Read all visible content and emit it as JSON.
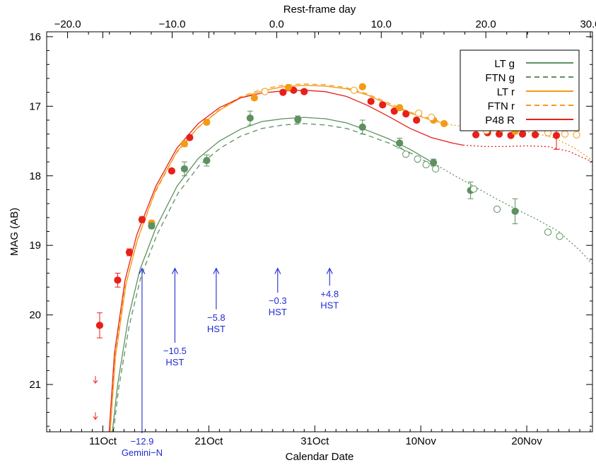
{
  "chart_data": {
    "type": "scatter",
    "xlabel": "Calendar Date",
    "x2label": "Rest-frame day",
    "ylabel": "MAG (AB)",
    "x_units": "days since 2011 Oct 1 (calendar axis shows dates)",
    "xlim": [
      4.7,
      56.2
    ],
    "x2lim": [
      -22.0,
      30.2
    ],
    "ylim": [
      21.68,
      15.93
    ],
    "y_inverted": true,
    "bottom_ticks": [
      {
        "x": 10,
        "label": "11Oct"
      },
      {
        "x": 20,
        "label": "21Oct"
      },
      {
        "x": 30,
        "label": "31Oct"
      },
      {
        "x": 40,
        "label": "10Nov"
      },
      {
        "x": 50,
        "label": "20Nov"
      }
    ],
    "top_ticks": [
      {
        "x": -20.0,
        "label": "−20.0"
      },
      {
        "x": -10.0,
        "label": "−10.0"
      },
      {
        "x": 0.0,
        "label": "0.0"
      },
      {
        "x": 10.0,
        "label": "10.0"
      },
      {
        "x": 20.0,
        "label": "20.0"
      },
      {
        "x": 30.0,
        "label": "30.0"
      }
    ],
    "y_ticks": [
      16,
      17,
      18,
      19,
      20,
      21
    ],
    "colors": {
      "g": "#5d9160",
      "r": "#f39b16",
      "R": "#e8201a",
      "hst": "#1f2bd0"
    },
    "legend": [
      {
        "label": "LT g",
        "color": "#5d9160",
        "dash": "solid"
      },
      {
        "label": "FTN g",
        "color": "#5d9160",
        "dash": "dashed"
      },
      {
        "label": "LT r",
        "color": "#f39b16",
        "dash": "solid"
      },
      {
        "label": "FTN r",
        "color": "#f39b16",
        "dash": "dashed"
      },
      {
        "label": "P48 R",
        "color": "#e8201a",
        "dash": "solid"
      }
    ],
    "legend_position": "top-right",
    "series": [
      {
        "name": "P48 R",
        "color": "#e8201a",
        "filled": true,
        "points": [
          [
            9.7,
            20.15,
            0.18
          ],
          [
            11.4,
            19.5,
            0.1
          ],
          [
            12.5,
            19.1,
            0.05
          ],
          [
            13.7,
            18.63,
            0.04
          ],
          [
            16.5,
            17.93,
            0.03
          ],
          [
            18.2,
            17.45,
            0.03
          ],
          [
            27.0,
            16.8,
            0.03
          ],
          [
            28.0,
            16.77,
            0.03
          ],
          [
            29.0,
            16.79,
            0.03
          ],
          [
            35.3,
            16.93,
            0.03
          ],
          [
            36.4,
            16.98,
            0.03
          ],
          [
            37.5,
            17.07,
            0.03
          ],
          [
            38.6,
            17.11,
            0.03
          ],
          [
            39.6,
            17.2,
            0.03
          ],
          [
            45.2,
            17.41,
            0.03
          ],
          [
            46.3,
            17.38,
            0.03
          ],
          [
            47.4,
            17.4,
            0.03
          ],
          [
            48.5,
            17.42,
            0.03
          ],
          [
            49.6,
            17.4,
            0.03
          ],
          [
            50.8,
            17.41,
            0.03
          ],
          [
            52.8,
            17.42,
            0.2
          ]
        ]
      },
      {
        "name": "LT r",
        "color": "#f39b16",
        "filled": true,
        "points": [
          [
            14.6,
            18.68,
            0.04
          ],
          [
            17.7,
            17.54,
            0.04
          ],
          [
            19.8,
            17.23,
            0.03
          ],
          [
            24.3,
            16.88,
            0.03
          ],
          [
            27.5,
            16.73,
            0.02
          ],
          [
            34.5,
            16.72,
            0.03
          ],
          [
            38.0,
            17.02,
            0.03
          ],
          [
            41.2,
            17.2,
            0.03
          ],
          [
            42.2,
            17.25,
            0.03
          ],
          [
            44.7,
            17.27,
            0.04
          ],
          [
            45.7,
            17.3,
            0.04
          ],
          [
            48.9,
            17.36,
            0.04
          ]
        ]
      },
      {
        "name": "FTN r",
        "color": "#f39b16",
        "filled": false,
        "points": [
          [
            25.3,
            16.79,
            0.0
          ],
          [
            33.7,
            16.77,
            0.0
          ],
          [
            39.8,
            17.1,
            0.0
          ],
          [
            41.0,
            17.16,
            0.0
          ],
          [
            46.2,
            17.35,
            0.0
          ],
          [
            47.6,
            17.32,
            0.0
          ],
          [
            52.0,
            17.38,
            0.0
          ],
          [
            53.6,
            17.4,
            0.0
          ],
          [
            54.7,
            17.41,
            0.0
          ]
        ]
      },
      {
        "name": "LT g",
        "color": "#5d9160",
        "filled": true,
        "points": [
          [
            14.6,
            18.72,
            0.04
          ],
          [
            17.7,
            17.9,
            0.1
          ],
          [
            19.8,
            17.78,
            0.08
          ],
          [
            23.9,
            17.17,
            0.1
          ],
          [
            28.4,
            17.19,
            0.05
          ],
          [
            34.5,
            17.3,
            0.1
          ],
          [
            38.0,
            17.53,
            0.07
          ],
          [
            41.2,
            17.81,
            0.05
          ],
          [
            44.7,
            18.21,
            0.12
          ],
          [
            48.9,
            18.51,
            0.18
          ]
        ]
      },
      {
        "name": "FTN g",
        "color": "#5d9160",
        "filled": false,
        "points": [
          [
            38.6,
            17.69,
            0.0
          ],
          [
            39.7,
            17.76,
            0.0
          ],
          [
            40.5,
            17.84,
            0.0
          ],
          [
            41.4,
            17.9,
            0.0
          ],
          [
            45.0,
            18.19,
            0.0
          ],
          [
            47.2,
            18.48,
            0.0
          ],
          [
            52.0,
            18.81,
            0.0
          ],
          [
            53.1,
            18.87,
            0.0
          ]
        ]
      }
    ],
    "upper_limits": [
      {
        "x": 9.3,
        "y": 20.93,
        "color": "#e8201a"
      },
      {
        "x": 9.3,
        "y": 21.45,
        "color": "#e8201a"
      }
    ],
    "model_curves": [
      {
        "name": "LT g",
        "color": "#5d9160",
        "dash": "solid",
        "points": [
          [
            10.9,
            21.68
          ],
          [
            11.4,
            21.0
          ],
          [
            12.4,
            20.05
          ],
          [
            13.5,
            19.35
          ],
          [
            15.0,
            18.75
          ],
          [
            17.0,
            18.15
          ],
          [
            19.0,
            17.75
          ],
          [
            21.0,
            17.5
          ],
          [
            23.0,
            17.33
          ],
          [
            25.0,
            17.22
          ],
          [
            27.0,
            17.18
          ],
          [
            29.0,
            17.16
          ],
          [
            31.0,
            17.18
          ],
          [
            33.0,
            17.24
          ],
          [
            35.0,
            17.35
          ],
          [
            37.0,
            17.47
          ],
          [
            39.0,
            17.62
          ],
          [
            41.0,
            17.8
          ]
        ]
      },
      {
        "name": "LT g (extrapolated)",
        "color": "#5d9160",
        "dash": "dotted",
        "points": [
          [
            41.0,
            17.8
          ],
          [
            43.0,
            17.98
          ],
          [
            45.0,
            18.15
          ],
          [
            47.0,
            18.32
          ],
          [
            49.0,
            18.48
          ],
          [
            51.0,
            18.63
          ],
          [
            53.0,
            18.8
          ],
          [
            55.0,
            19.07
          ],
          [
            56.2,
            19.27
          ]
        ]
      },
      {
        "name": "FTN g",
        "color": "#5d9160",
        "dash": "dashed",
        "points": [
          [
            11.0,
            21.68
          ],
          [
            11.5,
            21.05
          ],
          [
            12.5,
            20.15
          ],
          [
            13.6,
            19.45
          ],
          [
            15.1,
            18.85
          ],
          [
            17.1,
            18.25
          ],
          [
            19.1,
            17.85
          ],
          [
            21.1,
            17.6
          ],
          [
            23.0,
            17.43
          ],
          [
            25.0,
            17.32
          ],
          [
            27.0,
            17.27
          ],
          [
            29.0,
            17.25
          ],
          [
            31.0,
            17.27
          ],
          [
            33.0,
            17.32
          ],
          [
            35.0,
            17.42
          ],
          [
            37.0,
            17.53
          ],
          [
            39.0,
            17.67
          ],
          [
            41.0,
            17.84
          ]
        ]
      },
      {
        "name": "LT r",
        "color": "#f39b16",
        "dash": "solid",
        "points": [
          [
            10.7,
            21.68
          ],
          [
            11.2,
            20.6
          ],
          [
            12.2,
            19.55
          ],
          [
            13.3,
            18.9
          ],
          [
            15.0,
            18.2
          ],
          [
            17.0,
            17.65
          ],
          [
            19.0,
            17.3
          ],
          [
            21.0,
            17.06
          ],
          [
            23.0,
            16.88
          ],
          [
            25.0,
            16.78
          ],
          [
            27.0,
            16.72
          ],
          [
            29.0,
            16.7
          ],
          [
            31.0,
            16.71
          ],
          [
            33.0,
            16.75
          ],
          [
            35.0,
            16.84
          ],
          [
            37.0,
            16.98
          ],
          [
            39.0,
            17.1
          ],
          [
            41.0,
            17.2
          ],
          [
            42.5,
            17.26
          ]
        ]
      },
      {
        "name": "FTN r",
        "color": "#f39b16",
        "dash": "dashed",
        "points": [
          [
            10.6,
            21.68
          ],
          [
            11.1,
            20.65
          ],
          [
            12.1,
            19.6
          ],
          [
            13.2,
            18.95
          ],
          [
            14.9,
            18.25
          ],
          [
            16.9,
            17.68
          ],
          [
            18.9,
            17.32
          ],
          [
            20.9,
            17.06
          ],
          [
            22.9,
            16.87
          ],
          [
            24.9,
            16.76
          ],
          [
            26.9,
            16.7
          ],
          [
            28.9,
            16.68
          ],
          [
            30.9,
            16.69
          ],
          [
            32.9,
            16.73
          ],
          [
            34.9,
            16.82
          ],
          [
            36.9,
            16.95
          ],
          [
            38.9,
            17.08
          ],
          [
            40.9,
            17.18
          ],
          [
            42.4,
            17.24
          ]
        ]
      },
      {
        "name": "r (extrapolated)",
        "color": "#f39b16",
        "dash": "dotted",
        "points": [
          [
            42.5,
            17.26
          ],
          [
            44.5,
            17.3
          ],
          [
            46.5,
            17.33
          ],
          [
            48.5,
            17.35
          ],
          [
            50.5,
            17.38
          ],
          [
            52.5,
            17.45
          ],
          [
            54.5,
            17.6
          ],
          [
            56.2,
            17.78
          ]
        ]
      },
      {
        "name": "P48 R",
        "color": "#e8201a",
        "dash": "solid",
        "points": [
          [
            10.6,
            21.68
          ],
          [
            11.1,
            20.55
          ],
          [
            12.1,
            19.5
          ],
          [
            13.2,
            18.85
          ],
          [
            15.0,
            18.15
          ],
          [
            17.0,
            17.6
          ],
          [
            19.0,
            17.25
          ],
          [
            21.0,
            17.02
          ],
          [
            23.0,
            16.88
          ],
          [
            25.0,
            16.81
          ],
          [
            27.0,
            16.78
          ],
          [
            29.0,
            16.77
          ],
          [
            31.0,
            16.79
          ],
          [
            33.0,
            16.86
          ],
          [
            35.0,
            16.99
          ],
          [
            37.0,
            17.15
          ],
          [
            39.0,
            17.32
          ],
          [
            41.0,
            17.45
          ],
          [
            43.0,
            17.53
          ],
          [
            44.0,
            17.56
          ]
        ]
      },
      {
        "name": "P48 R (extrapolated)",
        "color": "#e8201a",
        "dash": "dotted",
        "points": [
          [
            44.0,
            17.56
          ],
          [
            46.0,
            17.58
          ],
          [
            48.0,
            17.58
          ],
          [
            50.0,
            17.57
          ],
          [
            52.0,
            17.58
          ],
          [
            54.0,
            17.65
          ],
          [
            56.2,
            17.8
          ]
        ]
      }
    ],
    "annotations": [
      {
        "x": 13.7,
        "y_tip": 19.33,
        "y_tail": 21.7,
        "label": "−12.9",
        "sub": "Gemini−N"
      },
      {
        "x": 16.8,
        "y_tip": 19.33,
        "y_tail": 20.4,
        "label": "−10.5",
        "sub": "HST"
      },
      {
        "x": 20.7,
        "y_tip": 19.33,
        "y_tail": 19.92,
        "label": "−5.8",
        "sub": "HST"
      },
      {
        "x": 26.5,
        "y_tip": 19.33,
        "y_tail": 19.68,
        "label": "−0.3",
        "sub": "HST"
      },
      {
        "x": 31.4,
        "y_tip": 19.33,
        "y_tail": 19.58,
        "label": "+4.8",
        "sub": "HST"
      }
    ]
  }
}
